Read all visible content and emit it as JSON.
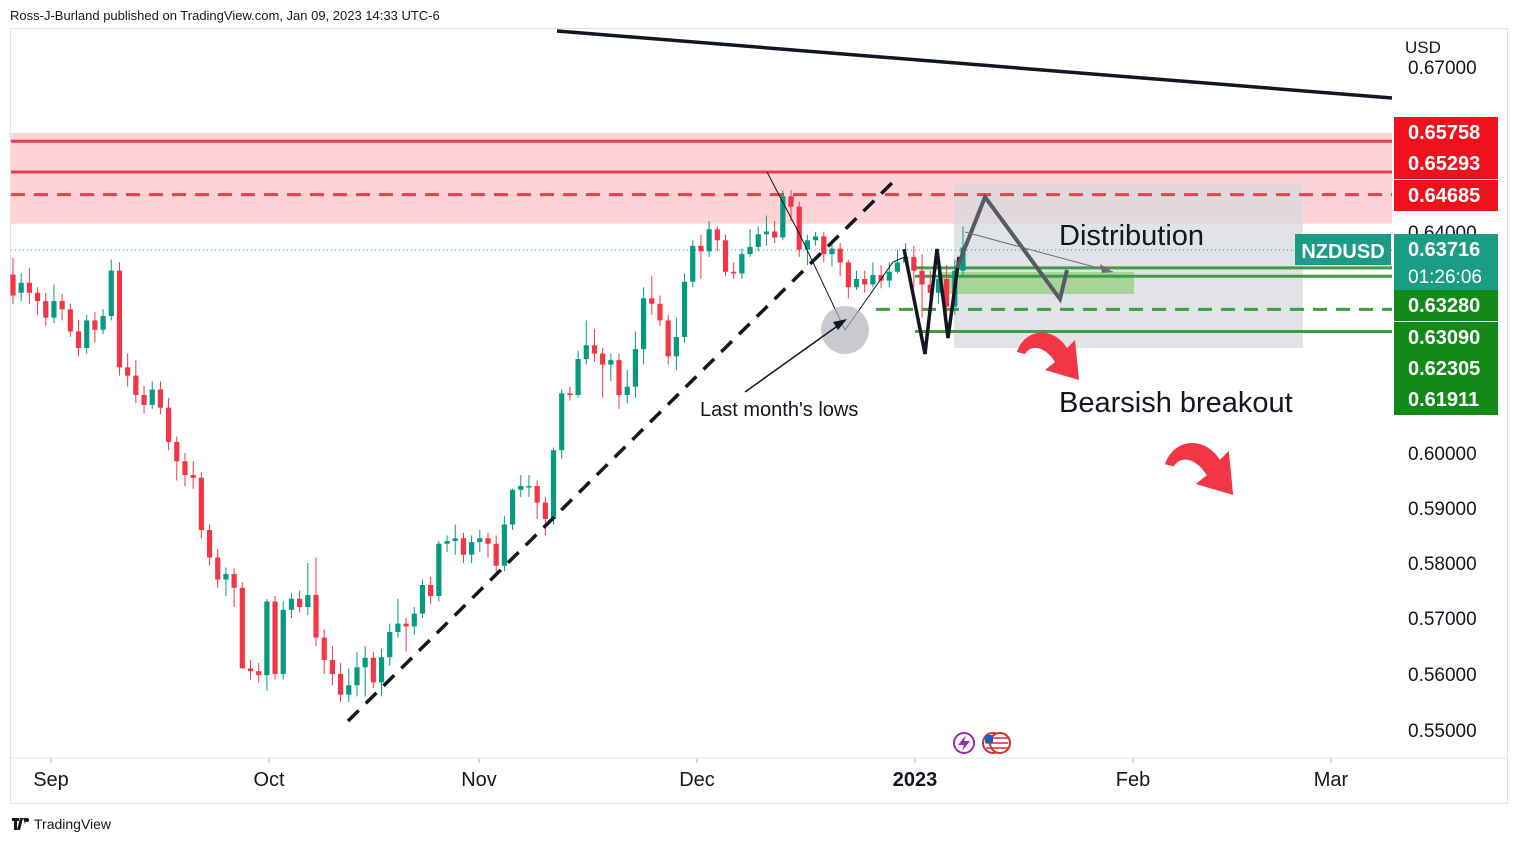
{
  "header": {
    "text": "Ross-J-Burland published on TradingView.com, Jan 09, 2023 14:33 UTC-6"
  },
  "footer": {
    "brand": "TradingView"
  },
  "symbol": {
    "name": "NZDUSD",
    "currency": "USD",
    "countdown": "01:26:06"
  },
  "colors": {
    "up": "#089981",
    "down": "#f23645",
    "zone_fill": "#fdd3d6",
    "zone_line": "#e5404e",
    "green_line": "#3f9d45",
    "green_label": "#118a18",
    "red_label": "#f0111e",
    "teal_label": "#1a9c85",
    "distribution_box": "#d7d9de",
    "green_box": "#9dd18e"
  },
  "annotations": {
    "distribution": "Distribution",
    "bearish": "Bearsish breakout",
    "lows": "Last month's lows"
  },
  "chart_data": {
    "type": "candlestick",
    "title": "NZDUSD",
    "ylabel": "USD",
    "ylim": [
      0.545,
      0.674
    ],
    "x_labels": [
      "Sep",
      "Oct",
      "Nov",
      "Dec",
      "2023",
      "Feb",
      "Mar"
    ],
    "y_ticks": [
      "0.67000",
      "0.64000",
      "0.60000",
      "0.59000",
      "0.58000",
      "0.57000",
      "0.56000",
      "0.55000"
    ],
    "price_labels": [
      {
        "text": "0.65758",
        "value": 0.65758,
        "kind": "red"
      },
      {
        "text": "0.65293",
        "value": 0.65293,
        "kind": "red"
      },
      {
        "text": "0.64685",
        "value": 0.64685,
        "kind": "red"
      },
      {
        "text": "0.63716",
        "value": 0.63716,
        "kind": "teal"
      },
      {
        "text": "0.63280",
        "value": 0.6328,
        "kind": "green"
      },
      {
        "text": "0.63090",
        "value": 0.6309,
        "kind": "green"
      },
      {
        "text": "0.62305",
        "value": 0.62305,
        "kind": "green"
      },
      {
        "text": "0.61911",
        "value": 0.61911,
        "kind": "green"
      }
    ],
    "horizontal_lines": [
      {
        "value": 0.6565,
        "style": "solid",
        "color": "red"
      },
      {
        "value": 0.6509,
        "style": "solid",
        "color": "red"
      },
      {
        "value": 0.6468,
        "style": "dashed",
        "color": "red"
      },
      {
        "value": 0.6335,
        "style": "solid",
        "color": "green"
      },
      {
        "value": 0.632,
        "style": "solid",
        "color": "green"
      },
      {
        "value": 0.626,
        "style": "dashed",
        "color": "green"
      },
      {
        "value": 0.622,
        "style": "solid",
        "color": "green"
      }
    ],
    "resistance_zone": [
      0.6415,
      0.658
    ],
    "candles": [
      [
        0.6323,
        0.6285,
        0.6353,
        0.627
      ],
      [
        0.629,
        0.6308,
        0.6325,
        0.6275
      ],
      [
        0.6308,
        0.629,
        0.6335,
        0.627
      ],
      [
        0.629,
        0.6275,
        0.63,
        0.625
      ],
      [
        0.6275,
        0.6245,
        0.629,
        0.623
      ],
      [
        0.6245,
        0.6275,
        0.6305,
        0.6235
      ],
      [
        0.6275,
        0.626,
        0.6288,
        0.624
      ],
      [
        0.626,
        0.622,
        0.627,
        0.621
      ],
      [
        0.622,
        0.619,
        0.624,
        0.6175
      ],
      [
        0.619,
        0.624,
        0.625,
        0.618
      ],
      [
        0.624,
        0.6223,
        0.6255,
        0.62
      ],
      [
        0.6223,
        0.6248,
        0.626,
        0.6215
      ],
      [
        0.6248,
        0.633,
        0.635,
        0.624
      ],
      [
        0.633,
        0.6155,
        0.6345,
        0.614
      ],
      [
        0.6155,
        0.614,
        0.618,
        0.612
      ],
      [
        0.614,
        0.6105,
        0.6168,
        0.609
      ],
      [
        0.6105,
        0.6087,
        0.6122,
        0.6072
      ],
      [
        0.6087,
        0.6115,
        0.613,
        0.608
      ],
      [
        0.6115,
        0.6082,
        0.613,
        0.607
      ],
      [
        0.6082,
        0.602,
        0.61,
        0.6005
      ],
      [
        0.602,
        0.5985,
        0.603,
        0.595
      ],
      [
        0.5985,
        0.596,
        0.6,
        0.594
      ],
      [
        0.596,
        0.5955,
        0.5985,
        0.5935
      ],
      [
        0.5955,
        0.586,
        0.5965,
        0.5845
      ],
      [
        0.586,
        0.581,
        0.587,
        0.5795
      ],
      [
        0.581,
        0.577,
        0.5825,
        0.5755
      ],
      [
        0.577,
        0.578,
        0.5792,
        0.574
      ],
      [
        0.578,
        0.5755,
        0.579,
        0.572
      ],
      [
        0.5755,
        0.561,
        0.5765,
        0.569
      ],
      [
        0.561,
        0.5605,
        0.5625,
        0.559
      ],
      [
        0.5605,
        0.5598,
        0.562,
        0.5585
      ],
      [
        0.5598,
        0.573,
        0.5735,
        0.557
      ],
      [
        0.573,
        0.56,
        0.574,
        0.559
      ],
      [
        0.56,
        0.5715,
        0.573,
        0.559
      ],
      [
        0.5715,
        0.5735,
        0.5745,
        0.57
      ],
      [
        0.5735,
        0.572,
        0.575,
        0.571
      ],
      [
        0.572,
        0.5742,
        0.58,
        0.5705
      ],
      [
        0.5742,
        0.5665,
        0.581,
        0.565
      ],
      [
        0.5665,
        0.5625,
        0.568,
        0.56
      ],
      [
        0.5625,
        0.56,
        0.565,
        0.558
      ],
      [
        0.56,
        0.5563,
        0.562,
        0.555
      ],
      [
        0.5563,
        0.558,
        0.561,
        0.555
      ],
      [
        0.558,
        0.5612,
        0.564,
        0.556
      ],
      [
        0.5612,
        0.5629,
        0.565,
        0.556
      ],
      [
        0.5629,
        0.5585,
        0.564,
        0.5575
      ],
      [
        0.5585,
        0.563,
        0.5645,
        0.556
      ],
      [
        0.563,
        0.5675,
        0.569,
        0.5615
      ],
      [
        0.5675,
        0.569,
        0.5735,
        0.5665
      ],
      [
        0.569,
        0.5685,
        0.57,
        0.564
      ],
      [
        0.5685,
        0.5708,
        0.572,
        0.567
      ],
      [
        0.5708,
        0.576,
        0.577,
        0.57
      ],
      [
        0.576,
        0.574,
        0.5775,
        0.5725
      ],
      [
        0.574,
        0.5835,
        0.584,
        0.573
      ],
      [
        0.5835,
        0.584,
        0.585,
        0.582
      ],
      [
        0.584,
        0.5845,
        0.587,
        0.5815
      ],
      [
        0.5845,
        0.5815,
        0.5855,
        0.58
      ],
      [
        0.5815,
        0.5838,
        0.585,
        0.58
      ],
      [
        0.5838,
        0.5845,
        0.586,
        0.582
      ],
      [
        0.5845,
        0.5835,
        0.5855,
        0.581
      ],
      [
        0.5835,
        0.5795,
        0.585,
        0.578
      ],
      [
        0.5795,
        0.587,
        0.5885,
        0.5785
      ],
      [
        0.587,
        0.5933,
        0.5935,
        0.586
      ],
      [
        0.5933,
        0.594,
        0.596,
        0.592
      ],
      [
        0.594,
        0.594,
        0.596,
        0.592
      ],
      [
        0.594,
        0.591,
        0.595,
        0.588
      ],
      [
        0.591,
        0.588,
        0.592,
        0.585
      ],
      [
        0.588,
        0.6005,
        0.601,
        0.587
      ],
      [
        0.6005,
        0.6108,
        0.6115,
        0.599
      ],
      [
        0.6108,
        0.6105,
        0.612,
        0.6095
      ],
      [
        0.6105,
        0.617,
        0.6185,
        0.61
      ],
      [
        0.617,
        0.6195,
        0.624,
        0.616
      ],
      [
        0.6195,
        0.618,
        0.6225,
        0.6165
      ],
      [
        0.618,
        0.616,
        0.619,
        0.61
      ],
      [
        0.616,
        0.6168,
        0.618,
        0.613
      ],
      [
        0.6168,
        0.6105,
        0.618,
        0.608
      ],
      [
        0.6105,
        0.612,
        0.615,
        0.609
      ],
      [
        0.612,
        0.6188,
        0.622,
        0.61
      ],
      [
        0.6188,
        0.628,
        0.63,
        0.616
      ],
      [
        0.628,
        0.627,
        0.632,
        0.625
      ],
      [
        0.627,
        0.624,
        0.6285,
        0.623
      ],
      [
        0.624,
        0.6175,
        0.625,
        0.616
      ],
      [
        0.6175,
        0.621,
        0.6245,
        0.615
      ],
      [
        0.621,
        0.631,
        0.6325,
        0.62
      ],
      [
        0.631,
        0.6375,
        0.6385,
        0.63
      ],
      [
        0.6375,
        0.6365,
        0.6395,
        0.6315
      ],
      [
        0.6365,
        0.6405,
        0.642,
        0.6355
      ],
      [
        0.6405,
        0.6385,
        0.641,
        0.6365
      ],
      [
        0.6385,
        0.6328,
        0.6395,
        0.632
      ],
      [
        0.6328,
        0.6325,
        0.6345,
        0.6315
      ],
      [
        0.6325,
        0.636,
        0.637,
        0.6315
      ],
      [
        0.636,
        0.6373,
        0.6405,
        0.6355
      ],
      [
        0.6373,
        0.6396,
        0.641,
        0.6365
      ],
      [
        0.6396,
        0.6401,
        0.643,
        0.6375
      ],
      [
        0.6401,
        0.639,
        0.642,
        0.638
      ],
      [
        0.639,
        0.6465,
        0.6475,
        0.6385
      ],
      [
        0.6465,
        0.6446,
        0.6476,
        0.642
      ],
      [
        0.6446,
        0.6368,
        0.6455,
        0.6355
      ],
      [
        0.6368,
        0.6385,
        0.6395,
        0.634
      ],
      [
        0.6385,
        0.6392,
        0.64,
        0.6375
      ],
      [
        0.6392,
        0.636,
        0.64,
        0.6345
      ],
      [
        0.636,
        0.637,
        0.6385,
        0.6338
      ],
      [
        0.637,
        0.6345,
        0.638,
        0.632
      ],
      [
        0.6345,
        0.63,
        0.635,
        0.628
      ],
      [
        0.63,
        0.6315,
        0.633,
        0.6295
      ],
      [
        0.6315,
        0.6305,
        0.633,
        0.629
      ],
      [
        0.6305,
        0.6322,
        0.6345,
        0.63
      ],
      [
        0.6322,
        0.6312,
        0.634,
        0.6298
      ],
      [
        0.6312,
        0.6328,
        0.6345,
        0.63
      ],
      [
        0.6328,
        0.6345,
        0.6368,
        0.6325
      ],
      [
        0.6345,
        0.6355,
        0.638,
        0.634
      ],
      [
        0.6355,
        0.633,
        0.6375,
        0.63
      ],
      [
        0.633,
        0.6305,
        0.636,
        0.6245
      ],
      [
        0.6305,
        0.629,
        0.633,
        0.626
      ],
      [
        0.629,
        0.6315,
        0.633,
        0.627
      ],
      [
        0.6315,
        0.6265,
        0.634,
        0.623
      ],
      [
        0.6265,
        0.633,
        0.635,
        0.625
      ],
      [
        0.633,
        0.6372,
        0.641,
        0.632
      ]
    ]
  }
}
